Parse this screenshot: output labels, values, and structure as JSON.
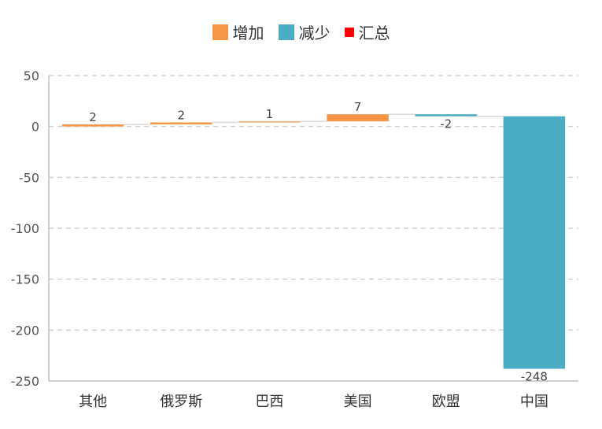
{
  "legend": [
    {
      "label": "增加",
      "color": "#F79646"
    },
    {
      "label": "减少",
      "color": "#4BACC6"
    },
    {
      "label": "汇总",
      "color": "#FF0000"
    }
  ],
  "chart_data": {
    "type": "bar",
    "subtype": "waterfall",
    "title": "",
    "xlabel": "",
    "ylabel": "",
    "categories": [
      "其他",
      "俄罗斯",
      "巴西",
      "美国",
      "欧盟",
      "中国"
    ],
    "values": [
      2,
      2,
      1,
      7,
      -2,
      -248
    ],
    "data_labels": [
      "2",
      "2",
      "1",
      "7",
      "-2",
      "-248"
    ],
    "yticks": [
      50,
      0,
      -50,
      -100,
      -150,
      -200,
      -250
    ],
    "ylim": [
      -250,
      50
    ],
    "grid": true,
    "legend_position": "top",
    "series_colors": {
      "增加": "#F79646",
      "减少": "#4BACC6",
      "汇总": "#FF0000"
    }
  }
}
